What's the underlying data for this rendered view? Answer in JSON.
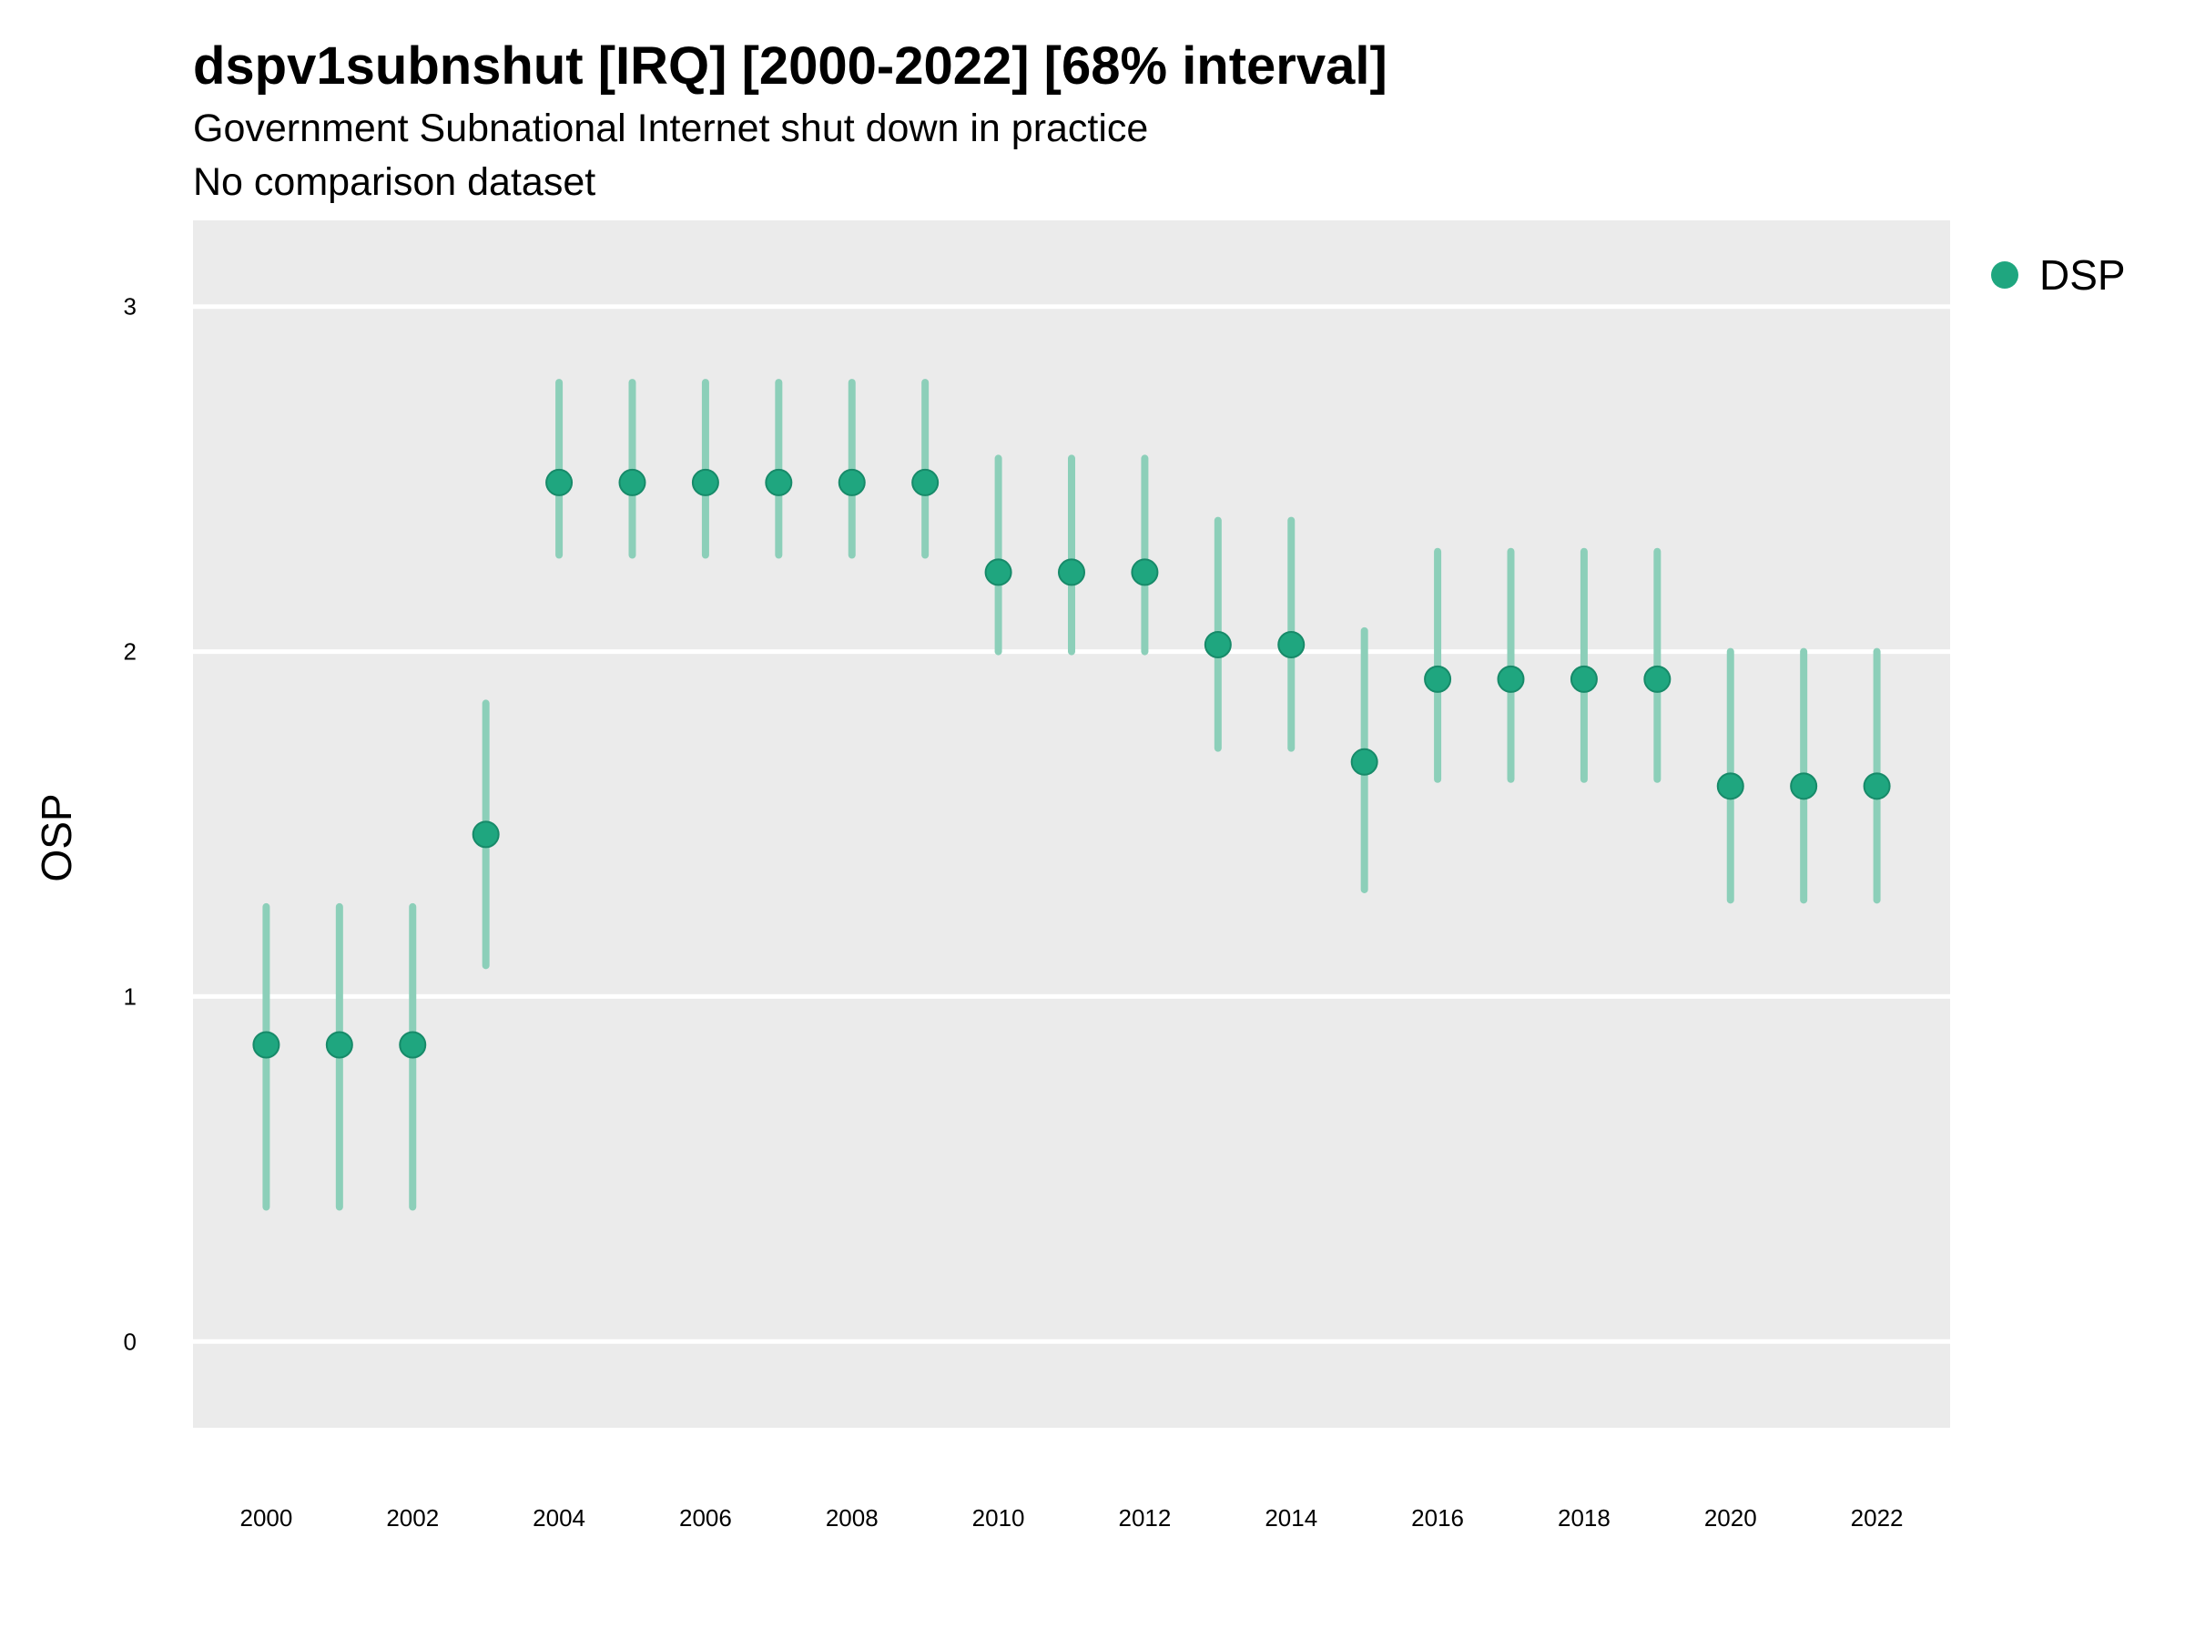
{
  "chart_data": {
    "type": "scatter",
    "title": "dspv1subnshut [IRQ] [2000-2022] [68% interval]",
    "subtitle": "Government Subnational Internet shut down in practice",
    "subtitle2": "No comparison dataset",
    "xlabel": "",
    "ylabel": "OSP",
    "xlim": [
      1999,
      2023
    ],
    "ylim": [
      -0.25,
      3.25
    ],
    "x_ticks": [
      2000,
      2002,
      2004,
      2006,
      2008,
      2010,
      2012,
      2014,
      2016,
      2018,
      2020,
      2022
    ],
    "y_ticks": [
      0,
      1,
      2,
      3
    ],
    "grid": true,
    "legend_position": "right",
    "colors": {
      "point": "#1fa67f",
      "interval": "#8ccfb9",
      "panel": "#ebebeb",
      "gridline": "#ffffff"
    },
    "series": [
      {
        "name": "DSP",
        "x": [
          2000,
          2001,
          2002,
          2003,
          2004,
          2005,
          2006,
          2007,
          2008,
          2009,
          2010,
          2011,
          2012,
          2013,
          2014,
          2015,
          2016,
          2017,
          2018,
          2019,
          2020,
          2021,
          2022
        ],
        "y": [
          0.86,
          0.86,
          0.86,
          1.47,
          2.49,
          2.49,
          2.49,
          2.49,
          2.49,
          2.49,
          2.23,
          2.23,
          2.23,
          2.02,
          2.02,
          1.68,
          1.92,
          1.92,
          1.92,
          1.92,
          1.61,
          1.61,
          1.61
        ],
        "lower": [
          0.39,
          0.39,
          0.39,
          1.09,
          2.28,
          2.28,
          2.28,
          2.28,
          2.28,
          2.28,
          2.0,
          2.0,
          2.0,
          1.72,
          1.72,
          1.31,
          1.63,
          1.63,
          1.63,
          1.63,
          1.28,
          1.28,
          1.28
        ],
        "upper": [
          1.26,
          1.26,
          1.26,
          1.85,
          2.78,
          2.78,
          2.78,
          2.78,
          2.78,
          2.78,
          2.56,
          2.56,
          2.56,
          2.38,
          2.38,
          2.06,
          2.29,
          2.29,
          2.29,
          2.29,
          2.0,
          2.0,
          2.0
        ]
      }
    ]
  }
}
